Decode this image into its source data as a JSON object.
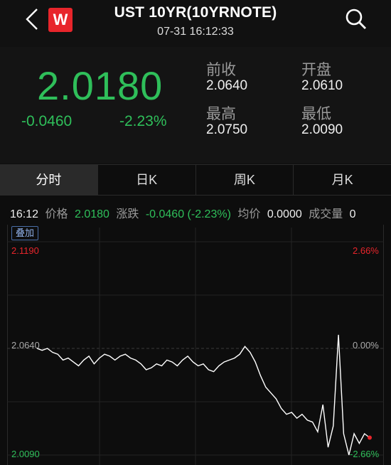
{
  "header": {
    "title": "UST 10YR(10YRNOTE)",
    "subtitle": "07-31 16:12:33",
    "logo_letter": "W"
  },
  "quote": {
    "price": "2.0180",
    "change": "-0.0460",
    "change_pct": "-2.23%",
    "prev_close_label": "前收",
    "prev_close": "2.0640",
    "open_label": "开盘",
    "open": "2.0610",
    "high_label": "最高",
    "high": "2.0750",
    "low_label": "最低",
    "low": "2.0090"
  },
  "tabs": [
    "分时",
    "日K",
    "周K",
    "月K"
  ],
  "info": {
    "time": "16:12",
    "price_label": "价格",
    "price": "2.0180",
    "change_label": "涨跌",
    "change": "-0.0460 (-2.23%)",
    "avg_label": "均价",
    "avg": "0.0000",
    "volume_label": "成交量",
    "volume": "0"
  },
  "chart": {
    "overlay_label": "叠加",
    "y_max": "2.1190",
    "y_mid": "2.0640",
    "y_min": "2.0090",
    "pct_max": "2.66%",
    "pct_mid": "0.00%",
    "pct_min": "-2.66%",
    "colors": {
      "up": "#e8252b",
      "down": "#2fbf5a",
      "line": "#ffffff"
    }
  },
  "chart_data": {
    "type": "line",
    "ylim": [
      2.009,
      2.119
    ],
    "values": [
      2.064,
      2.063,
      2.064,
      2.062,
      2.061,
      2.058,
      2.059,
      2.057,
      2.055,
      2.058,
      2.06,
      2.056,
      2.059,
      2.061,
      2.06,
      2.058,
      2.06,
      2.061,
      2.059,
      2.058,
      2.056,
      2.053,
      2.054,
      2.056,
      2.055,
      2.058,
      2.057,
      2.055,
      2.058,
      2.06,
      2.057,
      2.055,
      2.056,
      2.053,
      2.052,
      2.055,
      2.057,
      2.058,
      2.059,
      2.061,
      2.065,
      2.062,
      2.057,
      2.05,
      2.044,
      2.041,
      2.038,
      2.033,
      2.03,
      2.031,
      2.028,
      2.03,
      2.027,
      2.026,
      2.021,
      2.035,
      2.013,
      2.024,
      2.071,
      2.02,
      2.009,
      2.02,
      2.015,
      2.02,
      2.018
    ]
  }
}
